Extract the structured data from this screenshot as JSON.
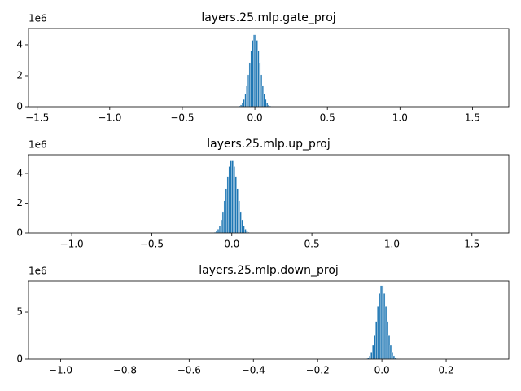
{
  "chart_data": [
    {
      "type": "histogram",
      "title": "layers.25.mlp.gate_proj",
      "y_offset_label": "1e6",
      "color": "#1f77b4",
      "bins": [
        -0.15,
        -0.14,
        -0.13,
        -0.12,
        -0.11,
        -0.1,
        -0.09,
        -0.08,
        -0.07,
        -0.06,
        -0.05,
        -0.04,
        -0.03,
        -0.02,
        -0.01,
        0,
        0.01,
        0.02,
        0.03,
        0.04,
        0.05,
        0.06,
        0.07,
        0.08,
        0.09,
        0.1,
        0.11,
        0.12,
        0.13,
        0.14,
        0.15
      ],
      "values": [
        0,
        0,
        0.01,
        0.02,
        0.05,
        0.12,
        0.25,
        0.47,
        0.84,
        1.37,
        2.06,
        2.85,
        3.64,
        4.29,
        4.65,
        4.65,
        4.29,
        3.64,
        2.85,
        2.06,
        1.37,
        0.84,
        0.47,
        0.25,
        0.12,
        0.05,
        0.02,
        0.01,
        0,
        0
      ],
      "xlim": [
        -1.56,
        1.75
      ],
      "ylim": [
        0,
        5.05
      ],
      "xticks": [
        {
          "value": -1.5,
          "label": "−1.5"
        },
        {
          "value": -1.0,
          "label": "−1.0"
        },
        {
          "value": -0.5,
          "label": "−0.5"
        },
        {
          "value": 0,
          "label": "0.0"
        },
        0.5,
        {
          "value": 1.0,
          "label": "1.0"
        },
        1.5
      ],
      "yticks": [
        0,
        2,
        4
      ]
    },
    {
      "type": "histogram",
      "title": "layers.25.mlp.up_proj",
      "y_offset_label": "1e6",
      "color": "#1f77b4",
      "bins": [
        -0.15,
        -0.14,
        -0.13,
        -0.12,
        -0.11,
        -0.1,
        -0.09,
        -0.08,
        -0.07,
        -0.06,
        -0.05,
        -0.04,
        -0.03,
        -0.02,
        -0.01,
        0,
        0.01,
        0.02,
        0.03,
        0.04,
        0.05,
        0.06,
        0.07,
        0.08,
        0.09,
        0.1,
        0.11,
        0.12,
        0.13,
        0.14,
        0.15
      ],
      "values": [
        0,
        0,
        0.01,
        0.02,
        0.05,
        0.13,
        0.26,
        0.49,
        0.88,
        1.43,
        2.15,
        2.97,
        3.8,
        4.47,
        4.85,
        4.85,
        4.47,
        3.8,
        2.97,
        2.15,
        1.43,
        0.88,
        0.49,
        0.26,
        0.13,
        0.05,
        0.02,
        0.01,
        0,
        0
      ],
      "xlim": [
        -1.27,
        1.73
      ],
      "ylim": [
        0,
        5.26
      ],
      "xticks": [
        {
          "value": -1.0,
          "label": "−1.0"
        },
        {
          "value": -0.5,
          "label": "−0.5"
        },
        {
          "value": 0,
          "label": "0.0"
        },
        0.5,
        {
          "value": 1.0,
          "label": "1.0"
        },
        1.5
      ],
      "yticks": [
        0,
        2,
        4
      ]
    },
    {
      "type": "histogram",
      "title": "layers.25.mlp.down_proj",
      "y_offset_label": "1e6",
      "color": "#1f77b4",
      "bins": [
        -0.06,
        -0.055,
        -0.05,
        -0.045,
        -0.04,
        -0.035,
        -0.03,
        -0.025,
        -0.02,
        -0.015,
        -0.01,
        -0.005,
        0,
        0.005,
        0.01,
        0.015,
        0.02,
        0.025,
        0.03,
        0.035,
        0.04,
        0.045,
        0.05,
        0.055,
        0.06
      ],
      "values": [
        0.01,
        0.02,
        0.05,
        0.14,
        0.35,
        0.75,
        1.47,
        2.57,
        4.0,
        5.58,
        6.97,
        7.79,
        7.79,
        6.97,
        5.58,
        4.0,
        2.57,
        1.47,
        0.75,
        0.35,
        0.14,
        0.05,
        0.02,
        0.01
      ],
      "xlim": [
        -1.1,
        0.395
      ],
      "ylim": [
        0,
        8.28
      ],
      "xticks": [
        {
          "value": -1.0,
          "label": "−1.0"
        },
        {
          "value": -0.8,
          "label": "−0.8"
        },
        {
          "value": -0.6,
          "label": "−0.6"
        },
        {
          "value": -0.4,
          "label": "−0.4"
        },
        {
          "value": -0.2,
          "label": "−0.2"
        },
        {
          "value": 0,
          "label": "0.0"
        },
        0.2
      ],
      "yticks": [
        0,
        5
      ]
    }
  ]
}
